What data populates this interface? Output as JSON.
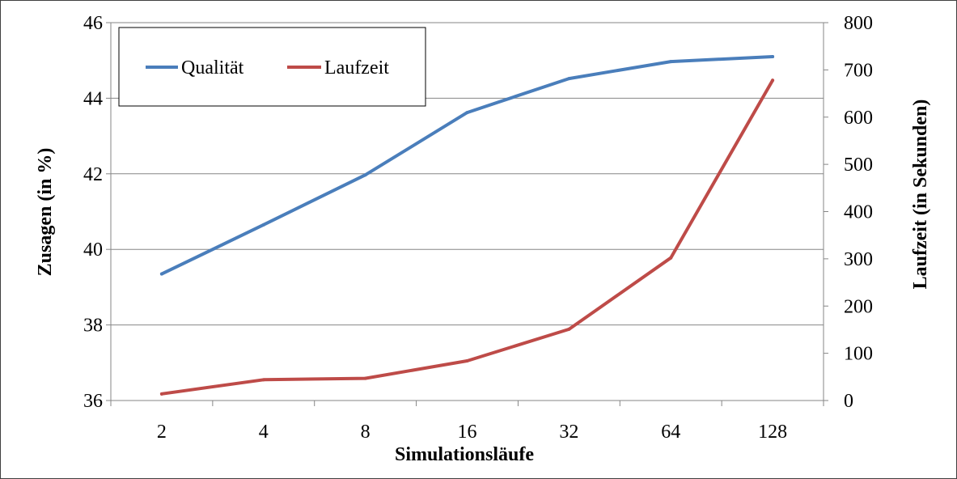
{
  "chart_data": {
    "type": "line",
    "categories": [
      "2",
      "4",
      "8",
      "16",
      "32",
      "64",
      "128"
    ],
    "xlabel": "Simulationsläufe",
    "ylabel": "Zusagen (in %)",
    "y2label": "Laufzeit (in Sekunden)",
    "ylim": [
      36,
      46
    ],
    "y2lim": [
      0,
      800
    ],
    "yticks": [
      "36",
      "38",
      "40",
      "42",
      "44",
      "46"
    ],
    "y2ticks": [
      "0",
      "100",
      "200",
      "300",
      "400",
      "500",
      "600",
      "700",
      "800"
    ],
    "grid": true,
    "legend_position": "top-left",
    "series": [
      {
        "name": "Qualität",
        "axis": "left",
        "color": "#4a7ebb",
        "values": [
          39.35,
          40.65,
          41.97,
          43.62,
          44.52,
          44.97,
          45.1
        ]
      },
      {
        "name": "Laufzeit",
        "axis": "right",
        "color": "#be4b48",
        "values": [
          14,
          44,
          47,
          84,
          151,
          302,
          678
        ]
      }
    ]
  }
}
